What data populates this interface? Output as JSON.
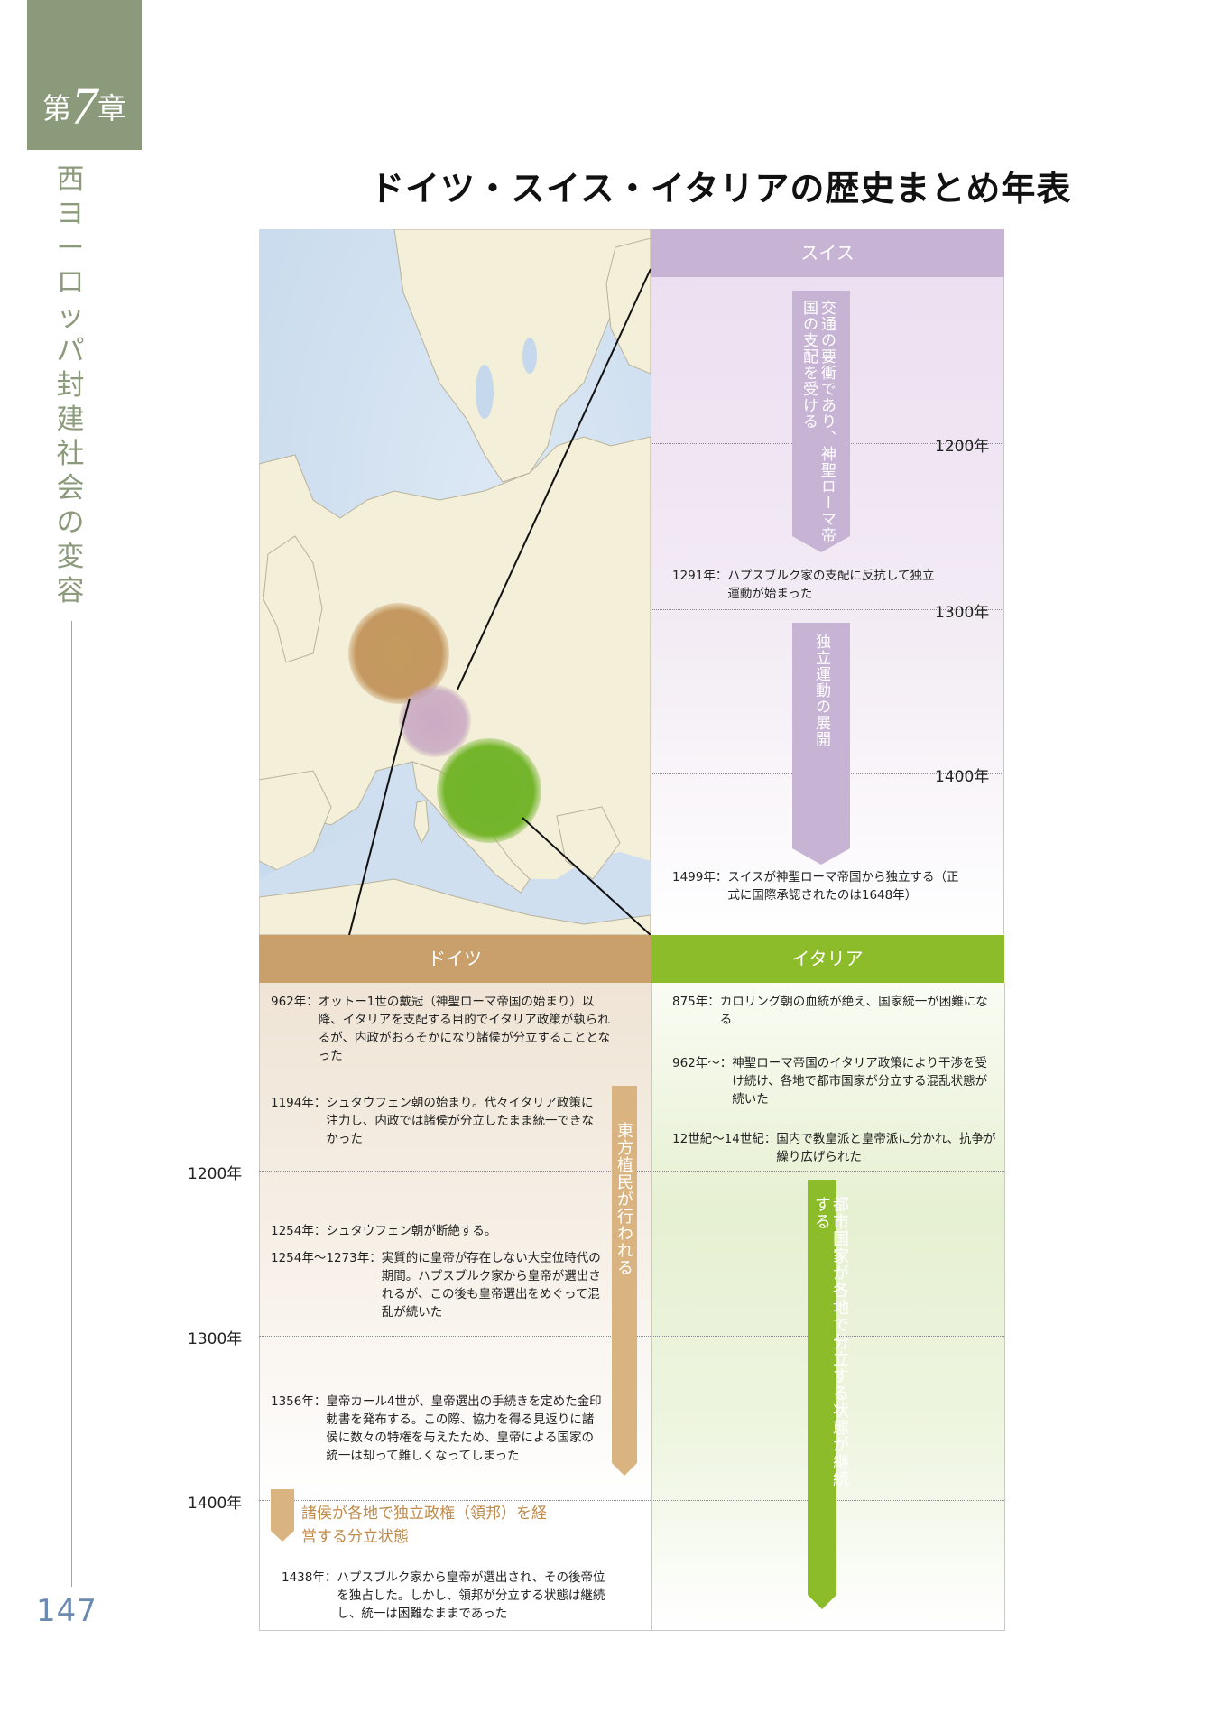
{
  "chapter": {
    "prefix": "第",
    "number": "7",
    "suffix": "章",
    "title": "西ヨーロッパ封建社会の変容"
  },
  "page_number": "147",
  "title": "ドイツ・スイス・イタリアの歴史まとめ年表",
  "colors": {
    "chapter": "#8c9a7c",
    "swiss": "#c7b3d4",
    "germany": "#c9a06b",
    "italy": "#8dbc2b"
  },
  "swiss": {
    "header": "スイス",
    "arrow1": "交通の要衝であり、神聖ローマ帝国の支配を受ける",
    "arrow2": "独立運動の展開",
    "years": [
      "1200年",
      "1300年",
      "1400年"
    ],
    "events": [
      {
        "year": "1291年：",
        "text": "ハプスブルク家の支配に反抗して独立運動が始まった"
      },
      {
        "year": "1499年：",
        "text": "スイスが神聖ローマ帝国から独立する（正式に国際承認されたのは1648年）"
      }
    ]
  },
  "germany": {
    "header": "ドイツ",
    "arrow": "東方植民が行われる",
    "note": "諸侯が各地で独立政権（領邦）を経営する分立状態",
    "years": [
      "1200年",
      "1300年",
      "1400年"
    ],
    "events": [
      {
        "year": "962年：",
        "text": "オットー1世の戴冠（神聖ローマ帝国の始まり）以降、イタリアを支配する目的でイタリア政策が執られるが、内政がおろそかになり諸侯が分立することとなった"
      },
      {
        "year": "1194年：",
        "text": "シュタウフェン朝の始まり。代々イタリア政策に注力し、内政では諸侯が分立したまま統一できなかった"
      },
      {
        "year": "1254年：",
        "text": "シュタウフェン朝が断絶する。"
      },
      {
        "year": "1254年～1273年：",
        "text": "実質的に皇帝が存在しない大空位時代の期間。ハプスブルク家から皇帝が選出されるが、この後も皇帝選出をめぐって混乱が続いた"
      },
      {
        "year": "1356年：",
        "text": "皇帝カール4世が、皇帝選出の手続きを定めた金印勅書を発布する。この際、協力を得る見返りに諸侯に数々の特権を与えたため、皇帝による国家の統一は却って難しくなってしまった"
      },
      {
        "year": "1438年：",
        "text": "ハプスブルク家から皇帝が選出され、その後帝位を独占した。しかし、領邦が分立する状態は継続し、統一は困難なままであった"
      }
    ]
  },
  "italy": {
    "header": "イタリア",
    "arrow": "都市国家が各地で分立する状態が継続する",
    "events": [
      {
        "year": "875年：",
        "text": "カロリング朝の血統が絶え、国家統一が困難になる"
      },
      {
        "year": "962年～：",
        "text": "神聖ローマ帝国のイタリア政策により干渉を受け続け、各地で都市国家が分立する混乱状態が続いた"
      },
      {
        "year": "12世紀～14世紀：",
        "text": "国内で教皇派と皇帝派に分かれ、抗争が繰り広げられた"
      }
    ]
  }
}
